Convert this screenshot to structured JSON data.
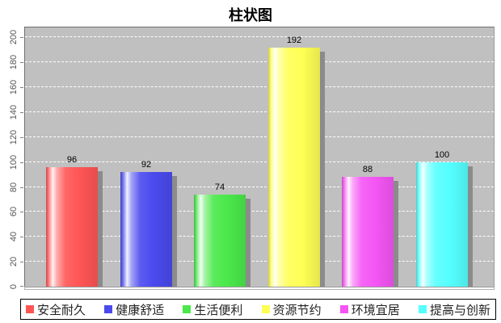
{
  "title": "柱状图",
  "colors": {
    "background": "#ffffff",
    "plot_background": "#c0c0c0",
    "gridline": "#ffffff",
    "bar_shadow": "#8b8b8b",
    "axis_line": "#b3b3b3",
    "tick_label": "#555555",
    "value_label": "#000000",
    "legend_border": "#000000",
    "legend_text": "#222222"
  },
  "chart_data": {
    "type": "bar",
    "title": "柱状图",
    "categories": [
      "安全耐久",
      "健康舒适",
      "生活便利",
      "资源节约",
      "环境宜居",
      "提高与创新"
    ],
    "values": [
      96,
      92,
      74,
      192,
      88,
      100
    ],
    "series_colors": [
      "#ff5555",
      "#4a4aee",
      "#4ae84a",
      "#ffff55",
      "#f455f4",
      "#55ffff"
    ],
    "value_labels": [
      "96",
      "92",
      "74",
      "192",
      "88",
      "100"
    ],
    "xlabel": "",
    "ylabel": "",
    "ylim": [
      0,
      208
    ],
    "yticks": [
      0,
      20,
      40,
      60,
      80,
      100,
      120,
      140,
      160,
      180,
      200
    ],
    "ytick_labels": [
      "0",
      "20",
      "40",
      "60",
      "80",
      "100",
      "120",
      "140",
      "160",
      "180",
      "200"
    ],
    "grid": "horizontal-dashed-white",
    "legend_position": "bottom",
    "bar_style": "glossy-cylinder-with-shadow"
  }
}
